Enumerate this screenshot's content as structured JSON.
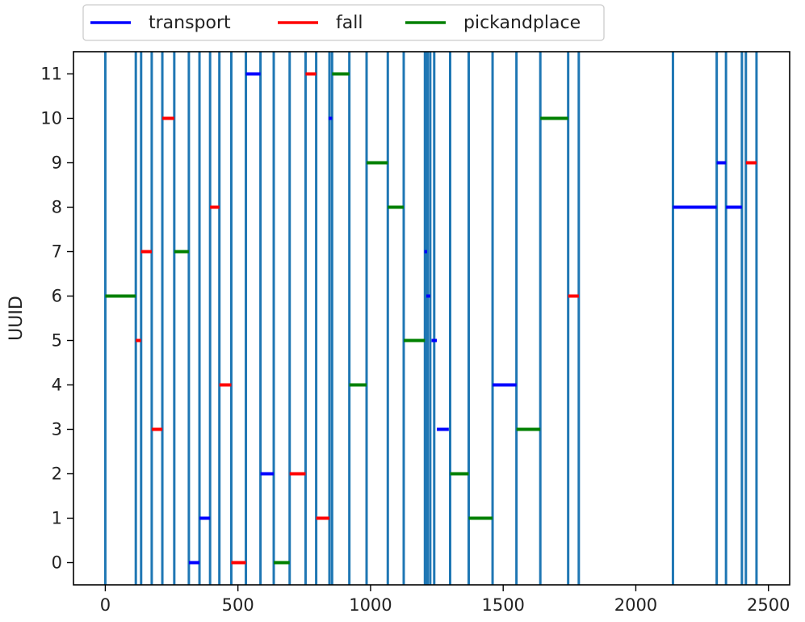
{
  "chart_data": {
    "type": "line",
    "title": "",
    "xlabel": "",
    "ylabel": "UUID",
    "xlim": [
      -120,
      2580
    ],
    "ylim": [
      -0.5,
      11.5
    ],
    "xticks": [
      0,
      500,
      1000,
      1500,
      2000,
      2500
    ],
    "yticks": [
      0,
      1,
      2,
      3,
      4,
      5,
      6,
      7,
      8,
      9,
      10,
      11
    ],
    "grid": false,
    "legend_position": "top-left",
    "vline_color": "#1f77b4",
    "vlines": [
      0,
      115,
      135,
      175,
      215,
      260,
      315,
      355,
      395,
      430,
      475,
      530,
      585,
      635,
      695,
      755,
      795,
      845,
      855,
      920,
      985,
      1065,
      1125,
      1205,
      1210,
      1215,
      1225,
      1240,
      1300,
      1370,
      1460,
      1550,
      1640,
      1745,
      1785,
      2140,
      2305,
      2340,
      2400,
      2415,
      2455
    ],
    "series": [
      {
        "name": "transport",
        "color": "#0000ff",
        "segments": [
          {
            "uuid": 0,
            "start": 315,
            "end": 355
          },
          {
            "uuid": 1,
            "start": 355,
            "end": 395
          },
          {
            "uuid": 2,
            "start": 585,
            "end": 635
          },
          {
            "uuid": 3,
            "start": 1250,
            "end": 1295
          },
          {
            "uuid": 4,
            "start": 1460,
            "end": 1550
          },
          {
            "uuid": 5,
            "start": 1230,
            "end": 1250
          },
          {
            "uuid": 6,
            "start": 1210,
            "end": 1225
          },
          {
            "uuid": 7,
            "start": 1203,
            "end": 1213
          },
          {
            "uuid": 8,
            "start": 2140,
            "end": 2305
          },
          {
            "uuid": 8,
            "start": 2340,
            "end": 2400
          },
          {
            "uuid": 9,
            "start": 2305,
            "end": 2340
          },
          {
            "uuid": 10,
            "start": 842,
            "end": 855
          },
          {
            "uuid": 11,
            "start": 530,
            "end": 585
          }
        ]
      },
      {
        "name": "fall",
        "color": "#ff0000",
        "segments": [
          {
            "uuid": 0,
            "start": 475,
            "end": 530
          },
          {
            "uuid": 1,
            "start": 795,
            "end": 845
          },
          {
            "uuid": 2,
            "start": 695,
            "end": 755
          },
          {
            "uuid": 3,
            "start": 175,
            "end": 215
          },
          {
            "uuid": 4,
            "start": 430,
            "end": 475
          },
          {
            "uuid": 5,
            "start": 115,
            "end": 135
          },
          {
            "uuid": 6,
            "start": 1745,
            "end": 1785
          },
          {
            "uuid": 7,
            "start": 135,
            "end": 175
          },
          {
            "uuid": 8,
            "start": 395,
            "end": 430
          },
          {
            "uuid": 9,
            "start": 2415,
            "end": 2455
          },
          {
            "uuid": 10,
            "start": 215,
            "end": 260
          },
          {
            "uuid": 11,
            "start": 755,
            "end": 795
          }
        ]
      },
      {
        "name": "pickandplace",
        "color": "#008000",
        "segments": [
          {
            "uuid": 0,
            "start": 635,
            "end": 695
          },
          {
            "uuid": 1,
            "start": 1370,
            "end": 1460
          },
          {
            "uuid": 2,
            "start": 1300,
            "end": 1370
          },
          {
            "uuid": 3,
            "start": 1550,
            "end": 1640
          },
          {
            "uuid": 4,
            "start": 920,
            "end": 985
          },
          {
            "uuid": 5,
            "start": 1125,
            "end": 1205
          },
          {
            "uuid": 6,
            "start": 0,
            "end": 115
          },
          {
            "uuid": 7,
            "start": 260,
            "end": 315
          },
          {
            "uuid": 8,
            "start": 1065,
            "end": 1125
          },
          {
            "uuid": 9,
            "start": 985,
            "end": 1065
          },
          {
            "uuid": 10,
            "start": 1640,
            "end": 1745
          },
          {
            "uuid": 11,
            "start": 855,
            "end": 920
          }
        ]
      }
    ]
  }
}
